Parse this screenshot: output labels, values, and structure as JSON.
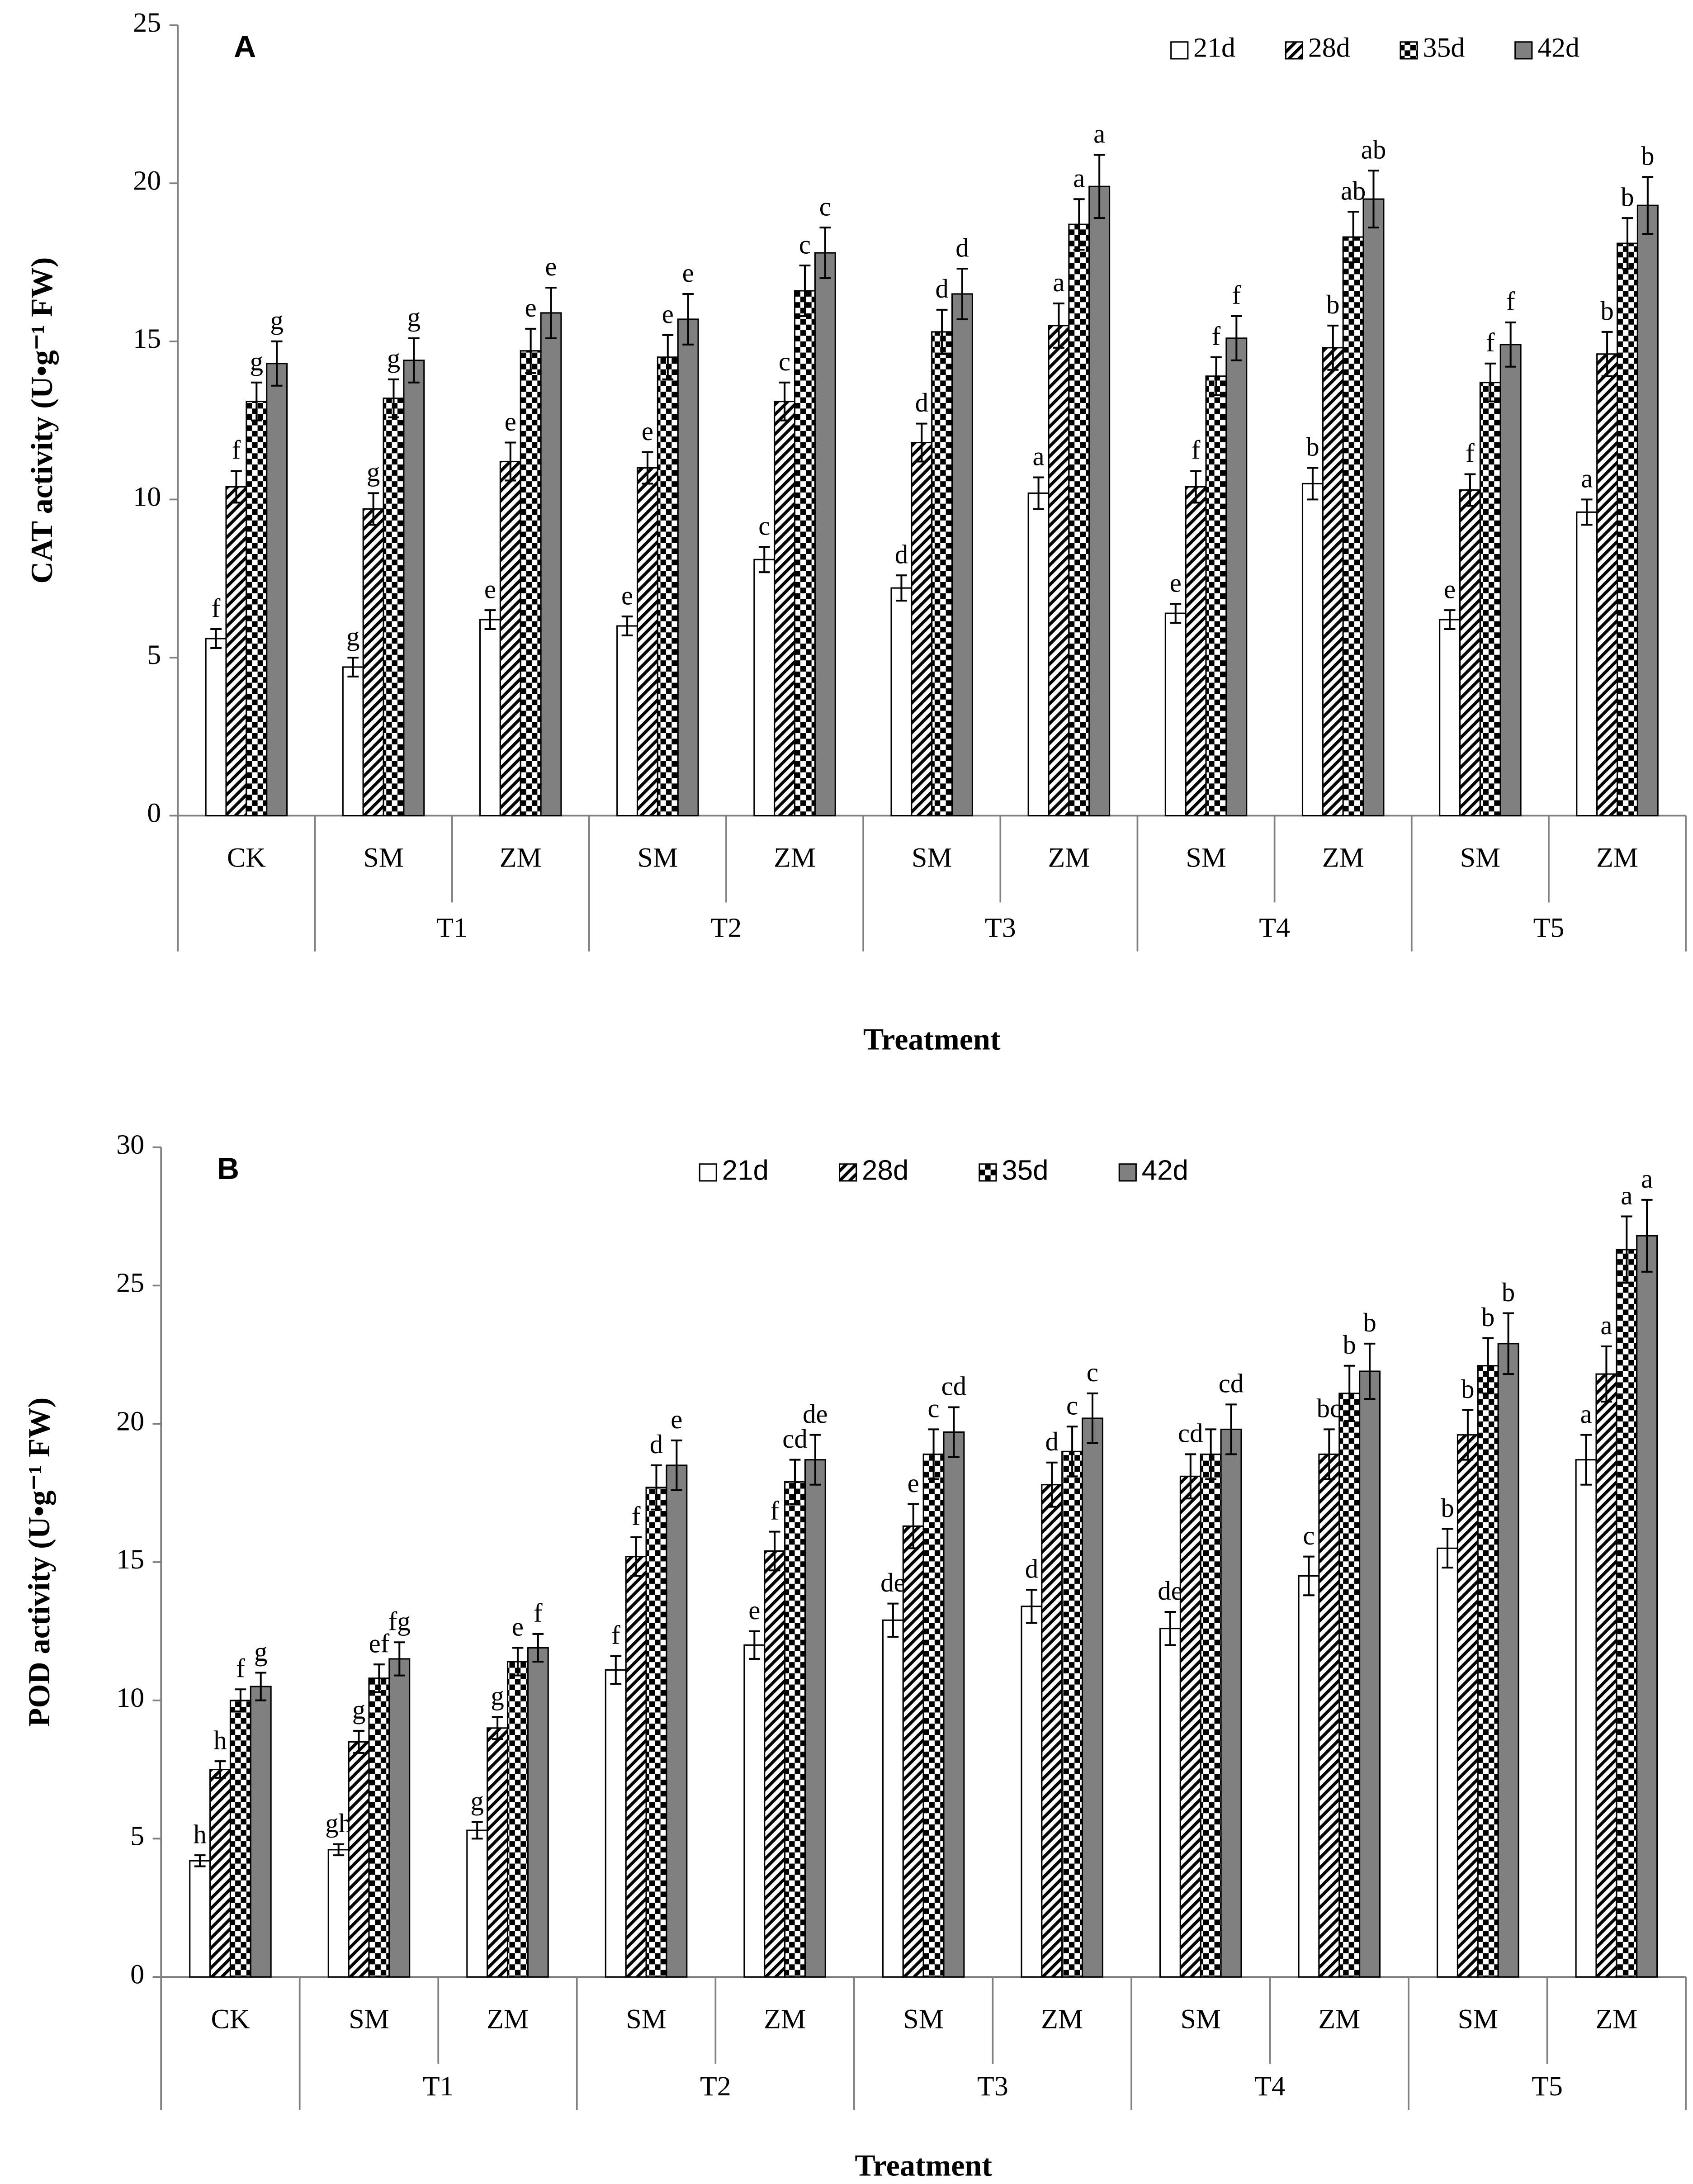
{
  "chart_data": [
    {
      "type": "bar",
      "panel": "A",
      "y_label": "CAT activity (U•g⁻¹ FW)",
      "x_label": "Treatment",
      "ylim": [
        0,
        25
      ],
      "yticks": [
        0,
        5,
        10,
        15,
        20,
        25
      ],
      "legend": "upper right",
      "category_groups": [
        {
          "label": null,
          "categories": [
            "CK"
          ]
        },
        {
          "label": "T1",
          "categories": [
            "SM",
            "ZM"
          ]
        },
        {
          "label": "T2",
          "categories": [
            "SM",
            "ZM"
          ]
        },
        {
          "label": "T3",
          "categories": [
            "SM",
            "ZM"
          ]
        },
        {
          "label": "T4",
          "categories": [
            "SM",
            "ZM"
          ]
        },
        {
          "label": "T5",
          "categories": [
            "SM",
            "ZM"
          ]
        }
      ],
      "series": [
        {
          "name": "21d",
          "color": "#ffffff",
          "pattern": "none",
          "values": [
            5.6,
            4.7,
            6.2,
            6.0,
            8.1,
            7.2,
            10.2,
            6.4,
            10.5,
            6.2,
            9.6
          ],
          "errors": [
            0.3,
            0.3,
            0.3,
            0.3,
            0.4,
            0.4,
            0.5,
            0.3,
            0.5,
            0.3,
            0.4
          ],
          "letters": [
            "f",
            "g",
            "e",
            "e",
            "c",
            "d",
            "a",
            "e",
            "b",
            "e",
            "a"
          ]
        },
        {
          "name": "28d",
          "color": "#000000",
          "pattern": "diagonal",
          "values": [
            10.4,
            9.7,
            11.2,
            11.0,
            13.1,
            11.8,
            15.5,
            10.4,
            14.8,
            10.3,
            14.6
          ],
          "errors": [
            0.5,
            0.5,
            0.6,
            0.5,
            0.6,
            0.6,
            0.7,
            0.5,
            0.7,
            0.5,
            0.7
          ],
          "letters": [
            "f",
            "g",
            "e",
            "e",
            "c",
            "d",
            "a",
            "f",
            "b",
            "f",
            "b"
          ]
        },
        {
          "name": "35d",
          "color": "#000000",
          "pattern": "checker",
          "values": [
            13.1,
            13.2,
            14.7,
            14.5,
            16.6,
            15.3,
            18.7,
            13.9,
            18.3,
            13.7,
            18.1
          ],
          "errors": [
            0.6,
            0.6,
            0.7,
            0.7,
            0.8,
            0.7,
            0.8,
            0.6,
            0.8,
            0.6,
            0.8
          ],
          "letters": [
            "g",
            "g",
            "e",
            "e",
            "c",
            "d",
            "a",
            "f",
            "ab",
            "f",
            "b"
          ]
        },
        {
          "name": "42d",
          "color": "#808080",
          "pattern": "none",
          "values": [
            14.3,
            14.4,
            15.9,
            15.7,
            17.8,
            16.5,
            19.9,
            15.1,
            19.5,
            14.9,
            19.3
          ],
          "errors": [
            0.7,
            0.7,
            0.8,
            0.8,
            0.8,
            0.8,
            1.0,
            0.7,
            0.9,
            0.7,
            0.9
          ],
          "letters": [
            "g",
            "g",
            "e",
            "e",
            "c",
            "d",
            "a",
            "f",
            "ab",
            "f",
            "b"
          ]
        }
      ]
    },
    {
      "type": "bar",
      "panel": "B",
      "y_label": "POD activity (U•g⁻¹ FW)",
      "x_label": "Treatment",
      "ylim": [
        0,
        30
      ],
      "yticks": [
        0,
        5,
        10,
        15,
        20,
        25,
        30
      ],
      "legend": "upper center",
      "category_groups": [
        {
          "label": null,
          "categories": [
            "CK"
          ]
        },
        {
          "label": "T1",
          "categories": [
            "SM",
            "ZM"
          ]
        },
        {
          "label": "T2",
          "categories": [
            "SM",
            "ZM"
          ]
        },
        {
          "label": "T3",
          "categories": [
            "SM",
            "ZM"
          ]
        },
        {
          "label": "T4",
          "categories": [
            "SM",
            "ZM"
          ]
        },
        {
          "label": "T5",
          "categories": [
            "SM",
            "ZM"
          ]
        }
      ],
      "series": [
        {
          "name": "21d",
          "color": "#ffffff",
          "pattern": "none",
          "values": [
            4.2,
            4.6,
            5.3,
            11.1,
            12.0,
            12.9,
            13.4,
            12.6,
            14.5,
            15.5,
            18.7
          ],
          "errors": [
            0.2,
            0.2,
            0.3,
            0.5,
            0.5,
            0.6,
            0.6,
            0.6,
            0.7,
            0.7,
            0.9
          ],
          "letters": [
            "h",
            "gh",
            "g",
            "f",
            "e",
            "de",
            "d",
            "de",
            "c",
            "b",
            "a"
          ]
        },
        {
          "name": "28d",
          "color": "#000000",
          "pattern": "diagonal",
          "values": [
            7.5,
            8.5,
            9.0,
            15.2,
            15.4,
            16.3,
            17.8,
            18.1,
            18.9,
            19.6,
            21.8
          ],
          "errors": [
            0.3,
            0.4,
            0.4,
            0.7,
            0.7,
            0.8,
            0.8,
            0.8,
            0.9,
            0.9,
            1.0
          ],
          "letters": [
            "h",
            "g",
            "g",
            "f",
            "f",
            "e",
            "d",
            "cd",
            "bc",
            "b",
            "a"
          ]
        },
        {
          "name": "35d",
          "color": "#000000",
          "pattern": "checker",
          "values": [
            10.0,
            10.8,
            11.4,
            17.7,
            17.9,
            18.9,
            19.0,
            18.9,
            21.1,
            22.1,
            26.3
          ],
          "errors": [
            0.4,
            0.5,
            0.5,
            0.8,
            0.8,
            0.9,
            0.9,
            0.9,
            1.0,
            1.0,
            1.2
          ],
          "letters": [
            "f",
            "ef",
            "e",
            "d",
            "cd",
            "c",
            "c",
            null,
            "b",
            "b",
            "a"
          ]
        },
        {
          "name": "42d",
          "color": "#808080",
          "pattern": "none",
          "values": [
            10.5,
            11.5,
            11.9,
            18.5,
            18.7,
            19.7,
            20.2,
            19.8,
            21.9,
            22.9,
            26.8
          ],
          "errors": [
            0.5,
            0.6,
            0.5,
            0.9,
            0.9,
            0.9,
            0.9,
            0.9,
            1.0,
            1.1,
            1.3
          ],
          "letters": [
            "g",
            "fg",
            "f",
            "e",
            "de",
            "cd",
            "c",
            "cd",
            "b",
            "b",
            "a"
          ]
        }
      ]
    }
  ]
}
